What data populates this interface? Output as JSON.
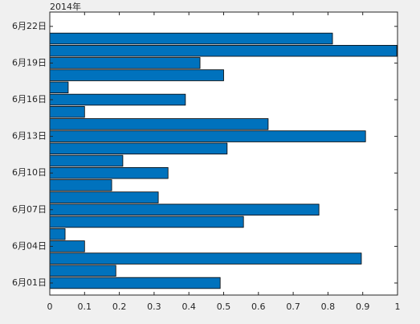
{
  "chart_data": {
    "type": "barh",
    "annotation": "2014年",
    "categories": [
      "6月01日",
      null,
      null,
      "6月04日",
      null,
      null,
      "6月07日",
      null,
      null,
      "6月10日",
      null,
      null,
      "6月13日",
      null,
      null,
      "6月16日",
      null,
      null,
      "6月19日",
      null,
      null,
      "6月22日"
    ],
    "values": [
      0.49,
      0.19,
      0.896,
      0.1,
      0.044,
      0.557,
      0.774,
      0.312,
      0.178,
      0.34,
      0.21,
      0.51,
      0.908,
      0.628,
      0.1,
      0.39,
      0.053,
      0.5,
      0.432,
      0.998,
      0.813,
      null
    ],
    "color": "#0072bd",
    "xlim": [
      0,
      1
    ],
    "xticks": [
      0,
      0.1,
      0.2,
      0.3,
      0.4,
      0.5,
      0.6,
      0.7,
      0.8,
      0.9,
      1
    ],
    "grid": false
  }
}
